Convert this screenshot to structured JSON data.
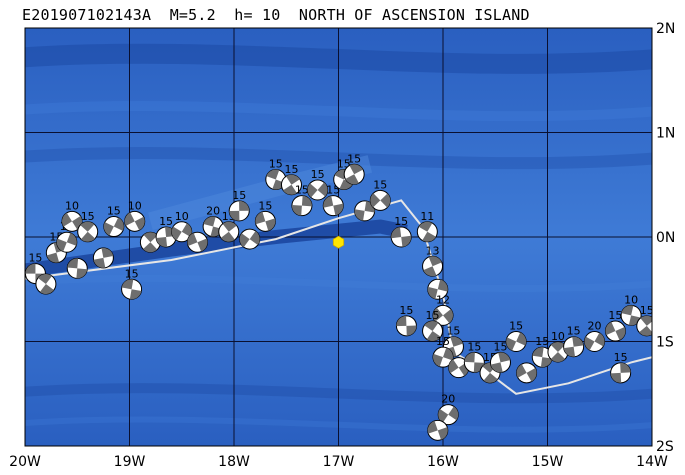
{
  "title": "E201907102143A  M=5.2  h= 10  NORTH OF ASCENSION ISLAND",
  "map": {
    "lon_labels": [
      "20W",
      "19W",
      "18W",
      "17W",
      "16W",
      "15W",
      "14W"
    ],
    "lat_labels": [
      "2N",
      "1N",
      "0N",
      "1S",
      "2S"
    ],
    "colors": {
      "ocean_light": "#3f7bd6",
      "ocean_mid": "#2a5fc0",
      "ocean_deep": "#1e4aa6",
      "trough": "#163e96",
      "grid": "#0a1030",
      "plate_boundary": "#e6e6e6",
      "focal_dark": "#6e6e6e",
      "focal_light": "#ffffff",
      "epicenter": "#ffe600"
    },
    "event": {
      "lon": -17.0,
      "lat": -0.05
    },
    "plate_boundary_lonlat": [
      [
        -20.0,
        -0.4
      ],
      [
        -18.6,
        -0.22
      ],
      [
        -17.6,
        -0.02
      ],
      [
        -17.0,
        0.18
      ],
      [
        -16.4,
        0.35
      ],
      [
        -16.2,
        0.1
      ],
      [
        -16.0,
        -0.55
      ],
      [
        -15.9,
        -1.1
      ],
      [
        -15.5,
        -1.35
      ],
      [
        -15.3,
        -1.5
      ],
      [
        -14.8,
        -1.4
      ],
      [
        -14.2,
        -1.2
      ],
      [
        -14.0,
        -1.15
      ]
    ],
    "earthquakes": [
      {
        "lon": -19.9,
        "lat": -0.35,
        "depth": "15"
      },
      {
        "lon": -19.8,
        "lat": -0.45,
        "depth": ""
      },
      {
        "lon": -19.7,
        "lat": -0.15,
        "depth": "15"
      },
      {
        "lon": -19.6,
        "lat": -0.05,
        "depth": "15"
      },
      {
        "lon": -19.55,
        "lat": 0.15,
        "depth": "10"
      },
      {
        "lon": -19.5,
        "lat": -0.3,
        "depth": ""
      },
      {
        "lon": -19.4,
        "lat": 0.05,
        "depth": "15"
      },
      {
        "lon": -19.25,
        "lat": -0.2,
        "depth": ""
      },
      {
        "lon": -19.15,
        "lat": 0.1,
        "depth": "15"
      },
      {
        "lon": -18.95,
        "lat": 0.15,
        "depth": "10"
      },
      {
        "lon": -18.98,
        "lat": -0.5,
        "depth": "15"
      },
      {
        "lon": -18.8,
        "lat": -0.05,
        "depth": ""
      },
      {
        "lon": -18.65,
        "lat": 0.0,
        "depth": "15"
      },
      {
        "lon": -18.5,
        "lat": 0.05,
        "depth": "10"
      },
      {
        "lon": -18.35,
        "lat": -0.05,
        "depth": ""
      },
      {
        "lon": -18.2,
        "lat": 0.1,
        "depth": "20"
      },
      {
        "lon": -18.05,
        "lat": 0.05,
        "depth": "15"
      },
      {
        "lon": -17.95,
        "lat": 0.25,
        "depth": "15"
      },
      {
        "lon": -17.85,
        "lat": -0.02,
        "depth": ""
      },
      {
        "lon": -17.7,
        "lat": 0.15,
        "depth": "15"
      },
      {
        "lon": -17.6,
        "lat": 0.55,
        "depth": "15"
      },
      {
        "lon": -17.45,
        "lat": 0.5,
        "depth": "15"
      },
      {
        "lon": -17.35,
        "lat": 0.3,
        "depth": "15"
      },
      {
        "lon": -17.2,
        "lat": 0.45,
        "depth": "15"
      },
      {
        "lon": -17.05,
        "lat": 0.3,
        "depth": "15"
      },
      {
        "lon": -16.95,
        "lat": 0.55,
        "depth": "15"
      },
      {
        "lon": -16.85,
        "lat": 0.6,
        "depth": "15"
      },
      {
        "lon": -16.75,
        "lat": 0.25,
        "depth": ""
      },
      {
        "lon": -16.6,
        "lat": 0.35,
        "depth": "15"
      },
      {
        "lon": -16.4,
        "lat": 0.0,
        "depth": "15"
      },
      {
        "lon": -16.15,
        "lat": 0.05,
        "depth": "11"
      },
      {
        "lon": -16.1,
        "lat": -0.28,
        "depth": "13"
      },
      {
        "lon": -16.05,
        "lat": -0.5,
        "depth": ""
      },
      {
        "lon": -16.0,
        "lat": -0.75,
        "depth": "12"
      },
      {
        "lon": -16.35,
        "lat": -0.85,
        "depth": "15"
      },
      {
        "lon": -16.1,
        "lat": -0.9,
        "depth": "15"
      },
      {
        "lon": -15.9,
        "lat": -1.05,
        "depth": "15"
      },
      {
        "lon": -16.0,
        "lat": -1.15,
        "depth": "15"
      },
      {
        "lon": -15.85,
        "lat": -1.25,
        "depth": ""
      },
      {
        "lon": -15.7,
        "lat": -1.2,
        "depth": "15"
      },
      {
        "lon": -15.55,
        "lat": -1.3,
        "depth": "15"
      },
      {
        "lon": -15.45,
        "lat": -1.2,
        "depth": "15"
      },
      {
        "lon": -15.3,
        "lat": -1.0,
        "depth": "15"
      },
      {
        "lon": -15.2,
        "lat": -1.3,
        "depth": ""
      },
      {
        "lon": -15.05,
        "lat": -1.15,
        "depth": "15"
      },
      {
        "lon": -14.9,
        "lat": -1.1,
        "depth": "10"
      },
      {
        "lon": -14.75,
        "lat": -1.05,
        "depth": "15"
      },
      {
        "lon": -14.55,
        "lat": -1.0,
        "depth": "20"
      },
      {
        "lon": -14.35,
        "lat": -0.9,
        "depth": "15"
      },
      {
        "lon": -14.2,
        "lat": -0.75,
        "depth": "10"
      },
      {
        "lon": -14.05,
        "lat": -0.85,
        "depth": "15"
      },
      {
        "lon": -14.3,
        "lat": -1.3,
        "depth": "15"
      },
      {
        "lon": -15.95,
        "lat": -1.7,
        "depth": "20"
      },
      {
        "lon": -16.05,
        "lat": -1.85,
        "depth": ""
      }
    ]
  }
}
